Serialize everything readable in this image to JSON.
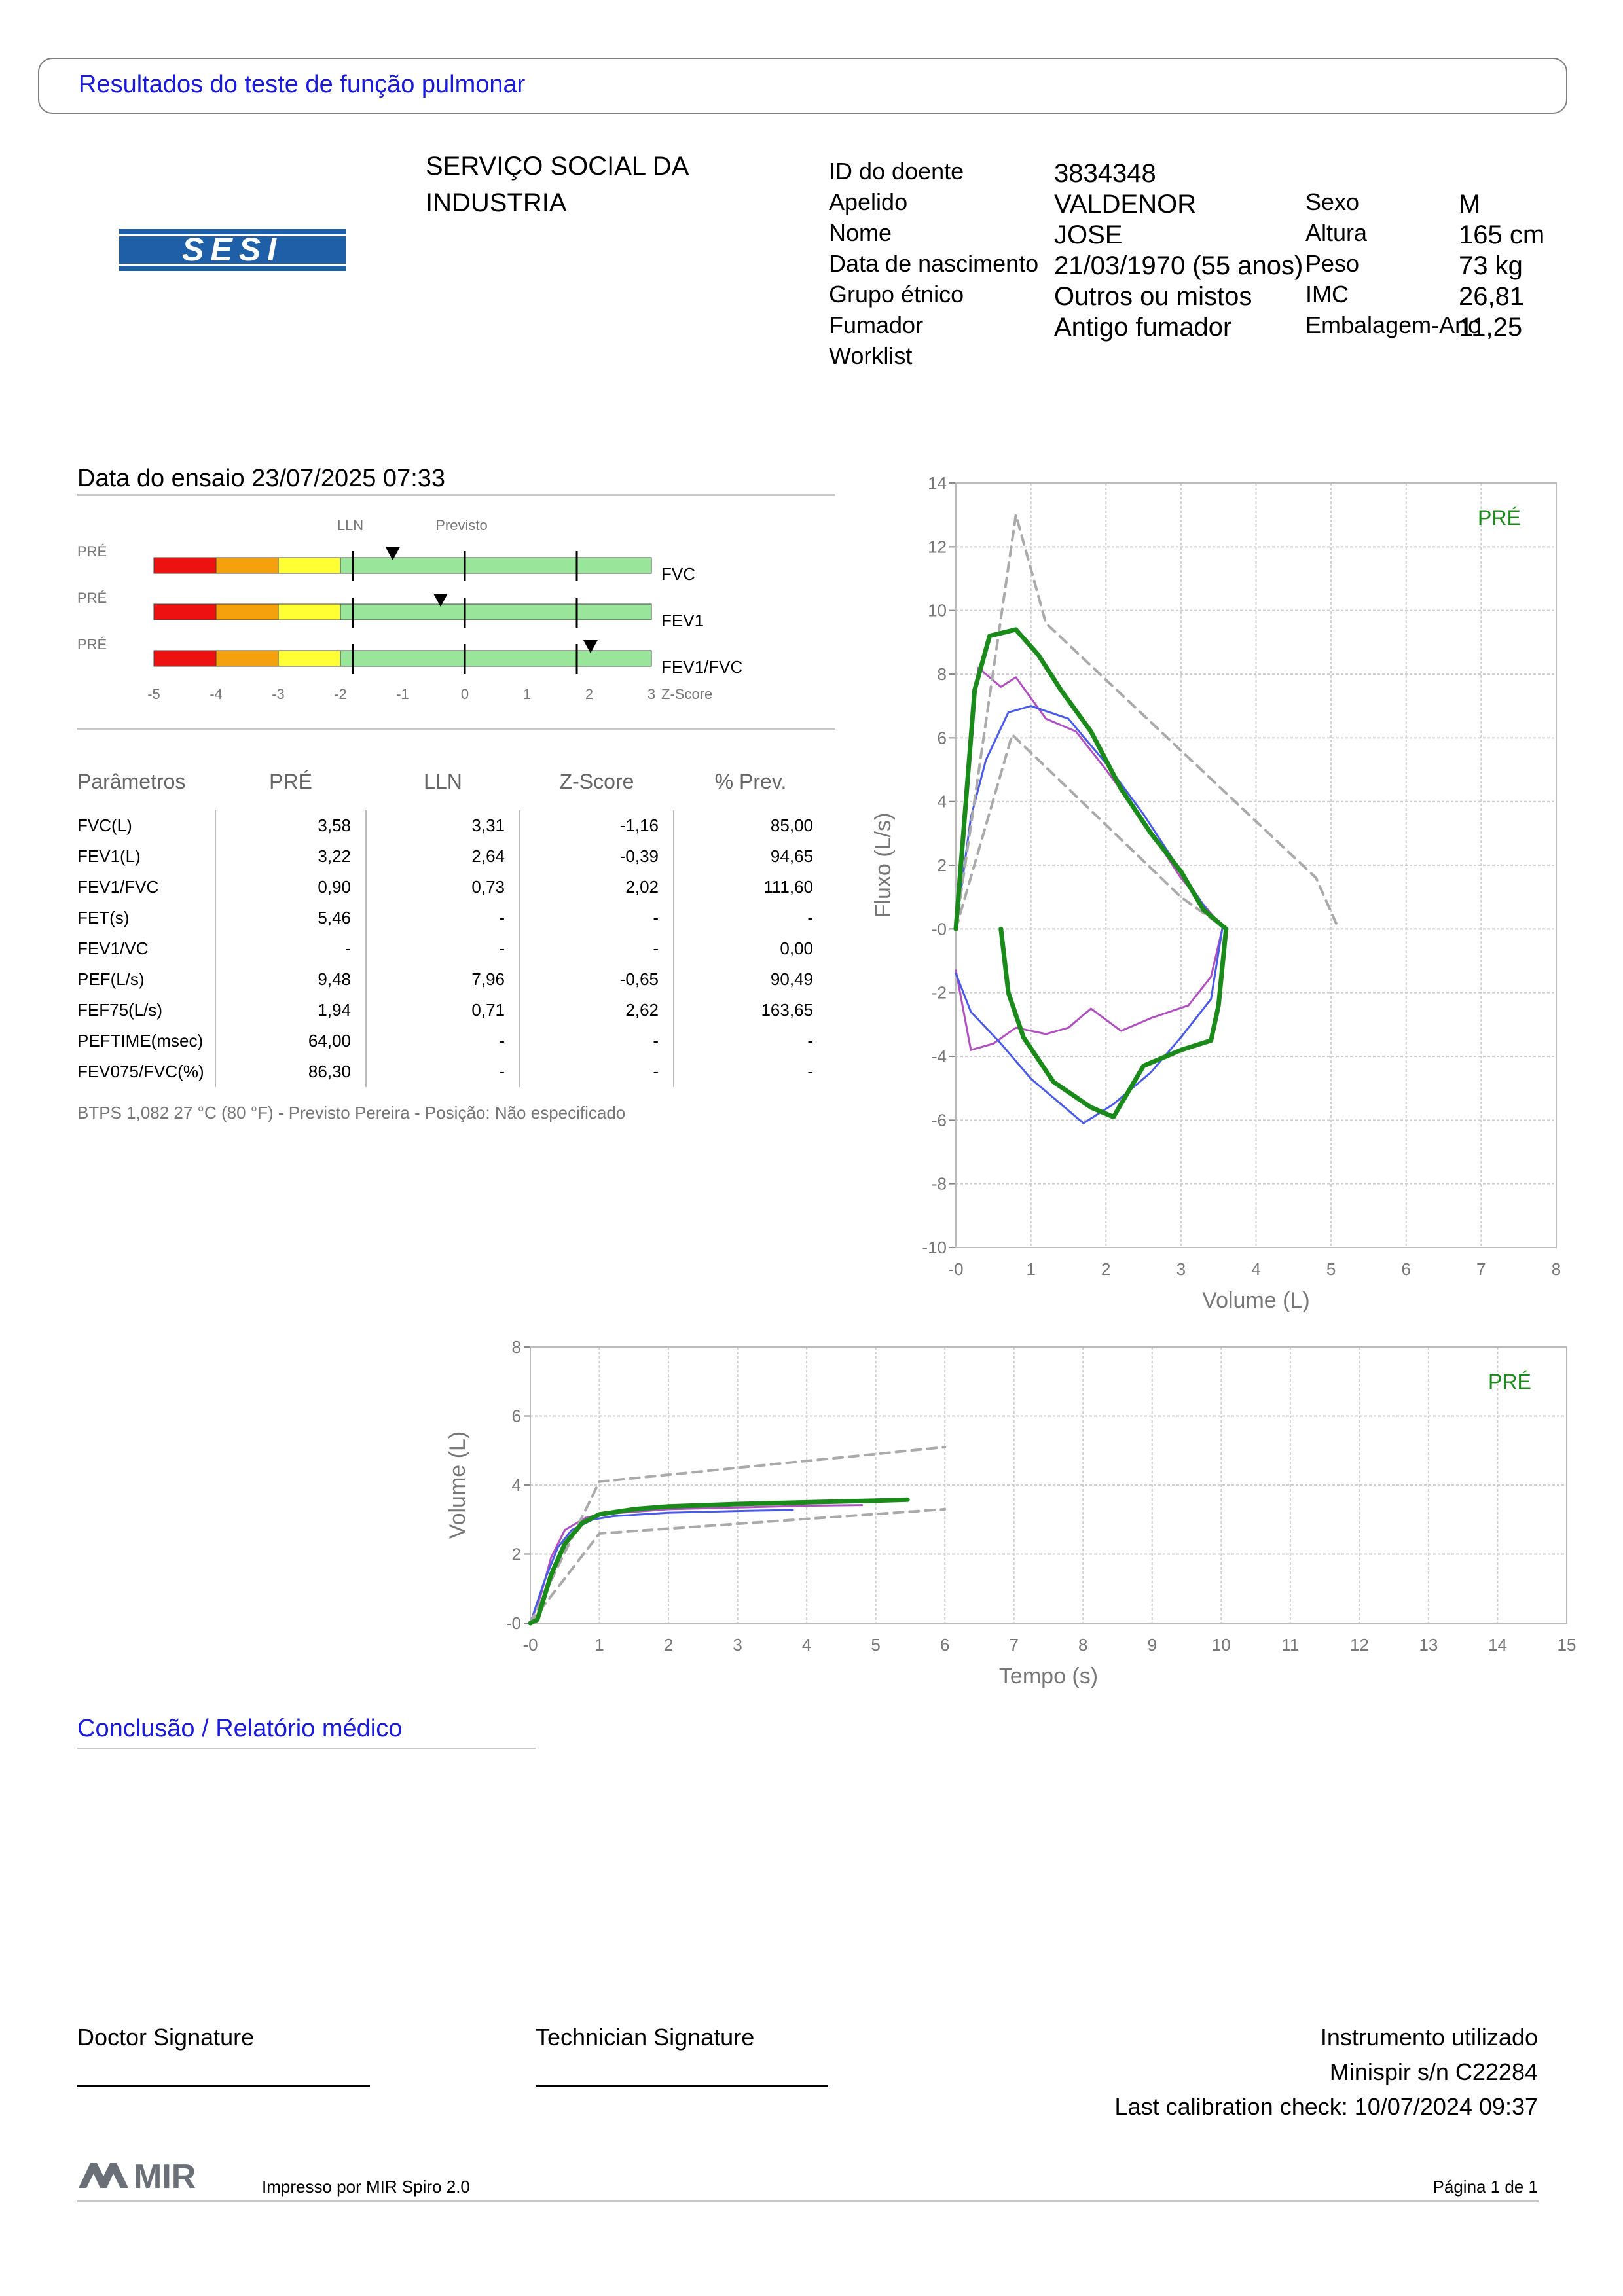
{
  "header": {
    "title": "Resultados do teste de função pulmonar",
    "logo_text": "SESI",
    "org_line1": "SERVIÇO SOCIAL DA",
    "org_line2": "INDUSTRIA"
  },
  "patient": {
    "id_label": "ID do doente",
    "id_value": "3834348",
    "surname_label": "Apelido",
    "surname_value": "VALDENOR",
    "name_label": "Nome",
    "name_value": "JOSE",
    "dob_label": "Data de nascimento",
    "dob_value": "21/03/1970 (55 anos)",
    "ethnic_label": "Grupo étnico",
    "ethnic_value": "Outros ou mistos",
    "smoker_label": "Fumador",
    "smoker_value": "Antigo fumador",
    "worklist_label": "Worklist",
    "sex_label": "Sexo",
    "sex_value": "M",
    "height_label": "Altura",
    "height_value": "165 cm",
    "weight_label": "Peso",
    "weight_value": "73 kg",
    "bmi_label": "IMC",
    "bmi_value": "26,81",
    "pack_label": "Embalagem-Ano",
    "pack_value": "11,25"
  },
  "test": {
    "date_label": "Data do ensaio 23/07/2025 07:33",
    "lln_label": "LLN",
    "pred_label": "Previsto",
    "zscore_label": "Z-Score",
    "pre_label": "PRÉ",
    "zaxis_ticks": [
      "-5",
      "-4",
      "-3",
      "-2",
      "-1",
      "0",
      "1",
      "2",
      "3"
    ],
    "zbars": [
      {
        "name": "FVC",
        "z": -1.16
      },
      {
        "name": "FEV1",
        "z": -0.39
      },
      {
        "name": "FEV1/FVC",
        "z": 2.02
      }
    ]
  },
  "params_table": {
    "headers": [
      "Parâmetros",
      "PRÉ",
      "LLN",
      "Z-Score",
      "% Prev."
    ],
    "rows": [
      [
        "FVC(L)",
        "3,58",
        "3,31",
        "-1,16",
        "85,00"
      ],
      [
        "FEV1(L)",
        "3,22",
        "2,64",
        "-0,39",
        "94,65"
      ],
      [
        "FEV1/FVC",
        "0,90",
        "0,73",
        "2,02",
        "111,60"
      ],
      [
        "FET(s)",
        "5,46",
        "-",
        "-",
        "-"
      ],
      [
        "FEV1/VC",
        "-",
        "-",
        "-",
        "0,00"
      ],
      [
        "PEF(L/s)",
        "9,48",
        "7,96",
        "-0,65",
        "90,49"
      ],
      [
        "FEF75(L/s)",
        "1,94",
        "0,71",
        "2,62",
        "163,65"
      ],
      [
        "PEFTIME(msec)",
        "64,00",
        "-",
        "-",
        "-"
      ],
      [
        "FEV075/FVC(%)",
        "86,30",
        "-",
        "-",
        "-"
      ]
    ],
    "note": "BTPS 1,082 27 °C (80 °F) - Previsto Pereira - Posição: Não especificado"
  },
  "chart_data": [
    {
      "type": "line",
      "title": "",
      "xlabel": "Volume (L)",
      "ylabel": "Fluxo (L/s)",
      "xlim": [
        0,
        8
      ],
      "ylim": [
        -10,
        14
      ],
      "x_ticks": [
        "-0",
        "1",
        "2",
        "3",
        "4",
        "5",
        "6",
        "7",
        "8"
      ],
      "y_ticks": [
        "14",
        "12",
        "10",
        "8",
        "6",
        "4",
        "2",
        "-0",
        "-2",
        "-4",
        "-6",
        "-8",
        "-10"
      ],
      "legend": "PRÉ",
      "colors": {
        "pre": "#1a8a1a",
        "trial2": "#b050c0",
        "trial3": "#4a5ae8",
        "predicted": "#aaaaaa"
      },
      "series": [
        {
          "points": [
            [
              0,
              0
            ],
            [
              0.1,
              3
            ],
            [
              0.25,
              7.5
            ],
            [
              0.45,
              9.2
            ],
            [
              0.8,
              9.4
            ],
            [
              1.1,
              8.6
            ],
            [
              1.4,
              7.5
            ],
            [
              1.8,
              6.2
            ],
            [
              2.2,
              4.4
            ],
            [
              2.6,
              3
            ],
            [
              3,
              1.8
            ],
            [
              3.3,
              0.6
            ],
            [
              3.6,
              0
            ]
          ]
        },
        {
          "points": [
            [
              0,
              0
            ],
            [
              0.15,
              5
            ],
            [
              0.3,
              8.2
            ],
            [
              0.6,
              7.6
            ],
            [
              0.8,
              7.9
            ],
            [
              1.2,
              6.6
            ],
            [
              1.6,
              6.2
            ],
            [
              2,
              5
            ],
            [
              2.5,
              3.4
            ],
            [
              3,
              1.6
            ],
            [
              3.5,
              0.2
            ],
            [
              3.6,
              0
            ]
          ]
        },
        {
          "points": [
            [
              0,
              0
            ],
            [
              0.2,
              3.5
            ],
            [
              0.4,
              5.3
            ],
            [
              0.7,
              6.8
            ],
            [
              1,
              7
            ],
            [
              1.5,
              6.6
            ],
            [
              2,
              5.2
            ],
            [
              2.5,
              3.6
            ],
            [
              3,
              1.8
            ],
            [
              3.4,
              0.4
            ],
            [
              3.6,
              0
            ]
          ]
        },
        {
          "points": [
            [
              0.6,
              0
            ],
            [
              0.7,
              -2
            ],
            [
              0.9,
              -3.4
            ],
            [
              1.3,
              -4.8
            ],
            [
              1.8,
              -5.6
            ],
            [
              2.1,
              -5.9
            ],
            [
              2.5,
              -4.3
            ],
            [
              3,
              -3.8
            ],
            [
              3.4,
              -3.5
            ],
            [
              3.5,
              -2.4
            ],
            [
              3.6,
              0
            ]
          ]
        },
        {
          "points": [
            [
              0,
              -1.3
            ],
            [
              0.2,
              -3.8
            ],
            [
              0.5,
              -3.6
            ],
            [
              0.8,
              -3.1
            ],
            [
              1.2,
              -3.3
            ],
            [
              1.5,
              -3.1
            ],
            [
              1.8,
              -2.5
            ],
            [
              2.2,
              -3.2
            ],
            [
              2.6,
              -2.8
            ],
            [
              3.1,
              -2.4
            ],
            [
              3.4,
              -1.5
            ],
            [
              3.55,
              0
            ]
          ]
        },
        {
          "points": [
            [
              0,
              -1.4
            ],
            [
              0.2,
              -2.6
            ],
            [
              0.6,
              -3.6
            ],
            [
              1,
              -4.7
            ],
            [
              1.4,
              -5.5
            ],
            [
              1.7,
              -6.1
            ],
            [
              2.1,
              -5.5
            ],
            [
              2.6,
              -4.5
            ],
            [
              3,
              -3.4
            ],
            [
              3.4,
              -2.2
            ],
            [
              3.55,
              0
            ]
          ]
        },
        {
          "points": [
            [
              0,
              0
            ],
            [
              0.8,
              13
            ],
            [
              1.2,
              9.6
            ],
            [
              4.8,
              1.6
            ],
            [
              5.1,
              0
            ]
          ]
        },
        {
          "points": [
            [
              0,
              0
            ],
            [
              0.75,
              6.1
            ],
            [
              3,
              1
            ],
            [
              3.6,
              0
            ]
          ]
        }
      ]
    },
    {
      "type": "line",
      "title": "",
      "xlabel": "Tempo (s)",
      "ylabel": "Volume (L)",
      "xlim": [
        0,
        15
      ],
      "ylim": [
        0,
        8
      ],
      "x_ticks": [
        "-0",
        "1",
        "2",
        "3",
        "4",
        "5",
        "6",
        "7",
        "8",
        "9",
        "10",
        "11",
        "12",
        "13",
        "14",
        "15"
      ],
      "y_ticks": [
        "8",
        "6",
        "4",
        "2",
        "-0"
      ],
      "legend": "PRÉ",
      "series": [
        {
          "points": [
            [
              0,
              0
            ],
            [
              0.1,
              0.1
            ],
            [
              0.3,
              1.4
            ],
            [
              0.5,
              2.3
            ],
            [
              0.75,
              2.9
            ],
            [
              1,
              3.15
            ],
            [
              1.5,
              3.3
            ],
            [
              2,
              3.38
            ],
            [
              3,
              3.45
            ],
            [
              4,
              3.5
            ],
            [
              5,
              3.55
            ],
            [
              5.46,
              3.58
            ]
          ]
        },
        {
          "points": [
            [
              0,
              0
            ],
            [
              0.15,
              0.8
            ],
            [
              0.3,
              1.9
            ],
            [
              0.5,
              2.7
            ],
            [
              0.8,
              3.05
            ],
            [
              1,
              3.15
            ],
            [
              2,
              3.3
            ],
            [
              3,
              3.35
            ],
            [
              4,
              3.4
            ],
            [
              4.8,
              3.42
            ]
          ]
        },
        {
          "points": [
            [
              0,
              0
            ],
            [
              0.2,
              1.2
            ],
            [
              0.4,
              2.2
            ],
            [
              0.6,
              2.7
            ],
            [
              0.9,
              3.0
            ],
            [
              1.2,
              3.1
            ],
            [
              2,
              3.2
            ],
            [
              3,
              3.25
            ],
            [
              3.8,
              3.28
            ]
          ]
        },
        {
          "points": [
            [
              0,
              0
            ],
            [
              1,
              4.1
            ],
            [
              6,
              5.1
            ]
          ]
        },
        {
          "points": [
            [
              0,
              0
            ],
            [
              1,
              2.6
            ],
            [
              6,
              3.3
            ]
          ]
        }
      ]
    }
  ],
  "conclusion": {
    "title": "Conclusão / Relatório médico"
  },
  "signatures": {
    "doctor": "Doctor Signature",
    "technician": "Technician Signature",
    "instrument_label": "Instrumento utilizado",
    "instrument_value": "Minispir s/n C22284",
    "calibration": "Last calibration check: 10/07/2024 09:37"
  },
  "footer": {
    "brand": "MIR",
    "printed_by": "Impresso por MIR Spiro 2.0",
    "page": "Página 1 de 1"
  }
}
